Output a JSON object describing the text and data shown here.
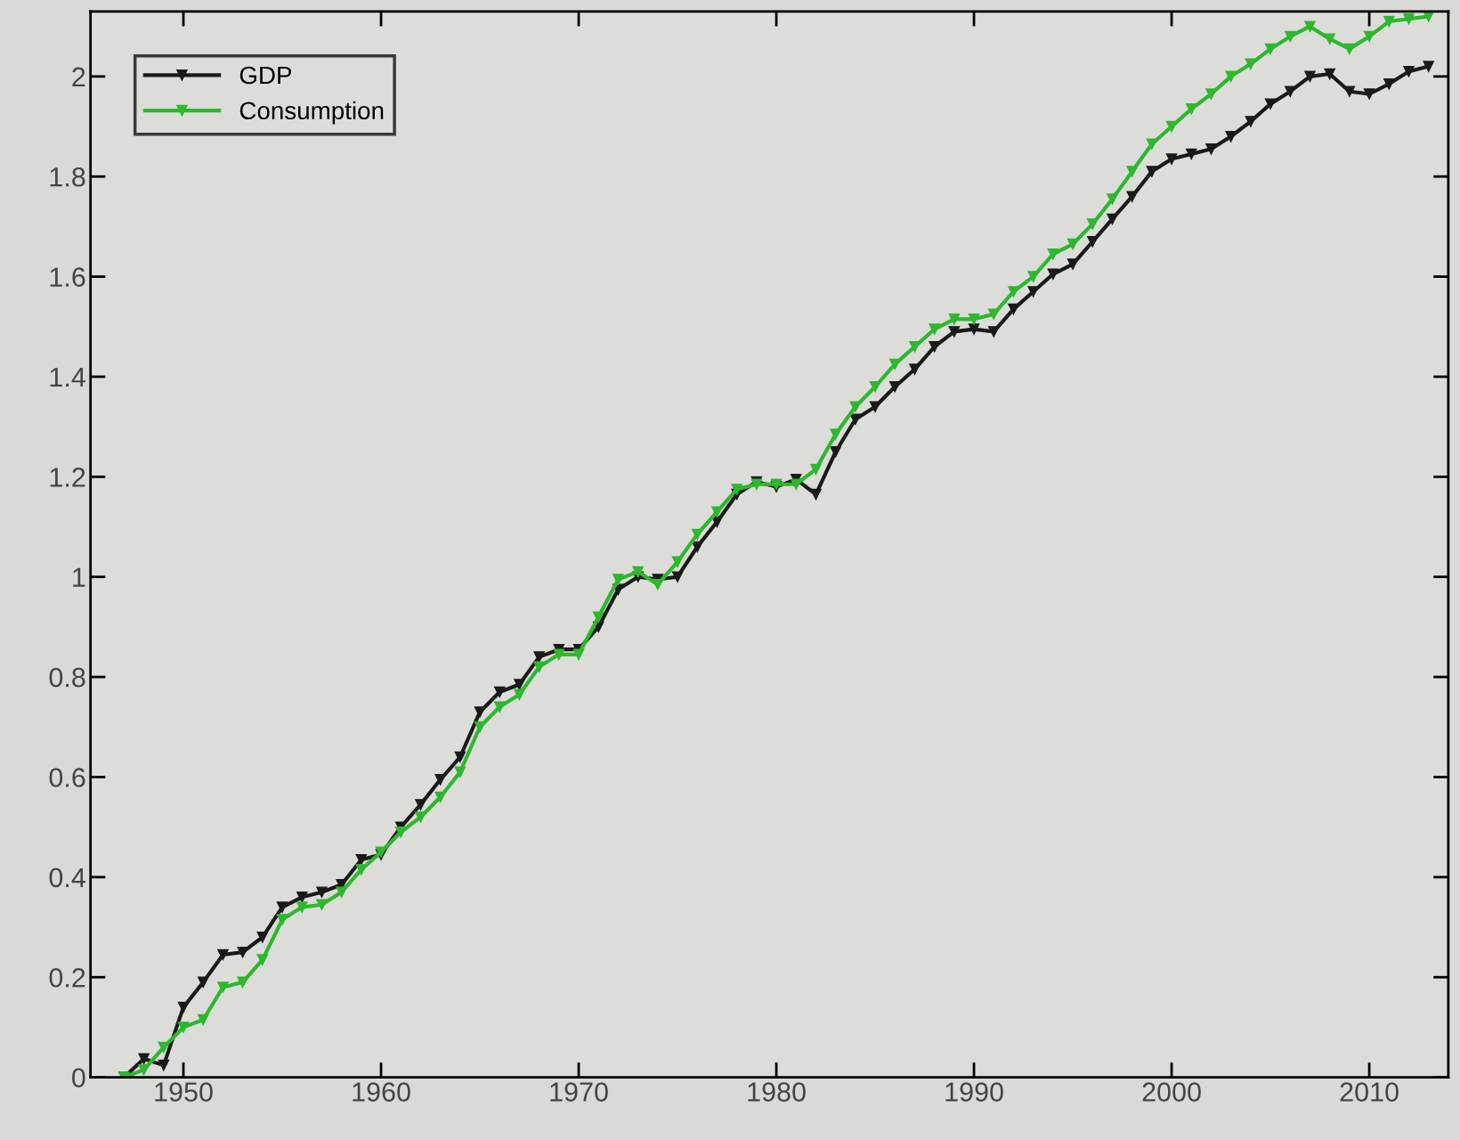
{
  "chart_data": {
    "type": "line",
    "x": [
      1947,
      1948,
      1949,
      1950,
      1951,
      1952,
      1953,
      1954,
      1955,
      1956,
      1957,
      1958,
      1959,
      1960,
      1961,
      1962,
      1963,
      1964,
      1965,
      1966,
      1967,
      1968,
      1969,
      1970,
      1971,
      1972,
      1973,
      1974,
      1975,
      1976,
      1977,
      1978,
      1979,
      1980,
      1981,
      1982,
      1983,
      1984,
      1985,
      1986,
      1987,
      1988,
      1989,
      1990,
      1991,
      1992,
      1993,
      1994,
      1995,
      1996,
      1997,
      1998,
      1999,
      2000,
      2001,
      2002,
      2003,
      2004,
      2005,
      2006,
      2007,
      2008,
      2009,
      2010,
      2011,
      2012,
      2013
    ],
    "series": [
      {
        "name": "GDP",
        "color": "#1a1a1a",
        "values": [
          0,
          0.037,
          0.024,
          0.14,
          0.19,
          0.245,
          0.25,
          0.28,
          0.34,
          0.36,
          0.37,
          0.385,
          0.435,
          0.445,
          0.5,
          0.545,
          0.595,
          0.64,
          0.73,
          0.77,
          0.785,
          0.84,
          0.855,
          0.855,
          0.9,
          0.975,
          1.0,
          0.995,
          1.0,
          1.06,
          1.11,
          1.165,
          1.19,
          1.18,
          1.195,
          1.165,
          1.25,
          1.315,
          1.34,
          1.38,
          1.415,
          1.46,
          1.49,
          1.495,
          1.49,
          1.535,
          1.57,
          1.605,
          1.625,
          1.67,
          1.715,
          1.76,
          1.81,
          1.835,
          1.845,
          1.855,
          1.88,
          1.91,
          1.945,
          1.97,
          2.0,
          2.005,
          1.97,
          1.965,
          1.985,
          2.01,
          2.02
        ]
      },
      {
        "name": "Consumption",
        "color": "#2db82d",
        "values": [
          0,
          0.015,
          0.06,
          0.1,
          0.115,
          0.18,
          0.19,
          0.235,
          0.315,
          0.34,
          0.345,
          0.37,
          0.415,
          0.45,
          0.49,
          0.52,
          0.56,
          0.61,
          0.7,
          0.74,
          0.765,
          0.82,
          0.845,
          0.845,
          0.92,
          0.995,
          1.01,
          0.985,
          1.03,
          1.085,
          1.13,
          1.175,
          1.185,
          1.185,
          1.185,
          1.215,
          1.285,
          1.34,
          1.38,
          1.425,
          1.46,
          1.495,
          1.515,
          1.515,
          1.525,
          1.57,
          1.6,
          1.645,
          1.665,
          1.705,
          1.755,
          1.81,
          1.865,
          1.9,
          1.935,
          1.965,
          2.0,
          2.025,
          2.055,
          2.08,
          2.1,
          2.075,
          2.055,
          2.08,
          2.11,
          2.115,
          2.12
        ]
      }
    ],
    "xlim": [
      1945.3,
      2014
    ],
    "ylim": [
      0,
      2.13
    ],
    "xticks": [
      1950,
      1960,
      1970,
      1980,
      1990,
      2000,
      2010
    ],
    "yticks": [
      0,
      0.2,
      0.4,
      0.6,
      0.8,
      1,
      1.2,
      1.4,
      1.6,
      1.8,
      2
    ],
    "legend": "top left",
    "marker": "triangle",
    "line_style": "solid"
  }
}
